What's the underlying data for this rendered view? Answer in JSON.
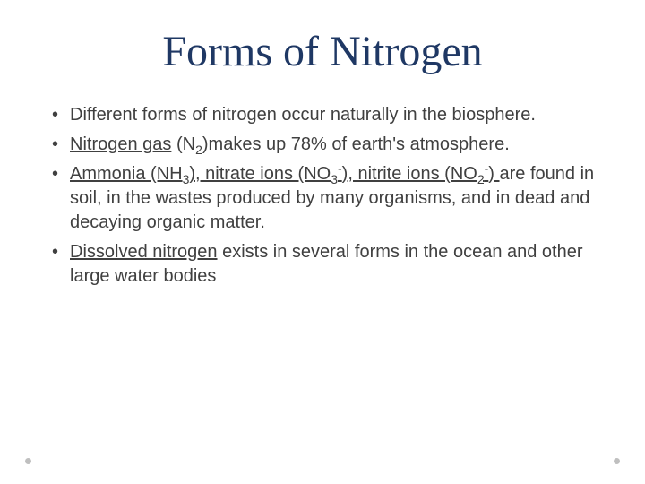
{
  "slide": {
    "title": "Forms of Nitrogen",
    "title_color": "#1f3864",
    "title_font": "Garamond",
    "title_fontsize": 48,
    "body_color": "#404040",
    "body_fontsize": 20,
    "background_color": "#ffffff",
    "bullets": [
      {
        "text_plain": "Different forms of nitrogen occur naturally in the biosphere.",
        "segments": [
          {
            "text": "Different forms of nitrogen occur naturally in the biosphere.",
            "underline": false
          }
        ]
      },
      {
        "text_plain": "Nitrogen gas (N2)makes up 78% of earth's atmosphere.",
        "segments": [
          {
            "text": "Nitrogen gas",
            "underline": true
          },
          {
            "text": " (N",
            "underline": false
          },
          {
            "text": "2",
            "sub": true
          },
          {
            "text": ")makes up 78% of earth's atmosphere.",
            "underline": false
          }
        ]
      },
      {
        "text_plain": "Ammonia (NH3), nitrate ions (NO3-), nitrite ions (NO2-) are found in soil, in the wastes produced by many organisms, and in dead and decaying organic matter.",
        "segments": [
          {
            "text": "Ammonia (NH",
            "underline": true
          },
          {
            "text": "3",
            "underline": true,
            "sub": true
          },
          {
            "text": "), nitrate ions (NO",
            "underline": true
          },
          {
            "text": "3",
            "underline": true,
            "sub": true
          },
          {
            "text": "-",
            "underline": true,
            "sup": true
          },
          {
            "text": "), nitrite ions (NO",
            "underline": true
          },
          {
            "text": "2",
            "underline": true,
            "sub": true
          },
          {
            "text": "-",
            "underline": true,
            "sup": true
          },
          {
            "text": ") ",
            "underline": true
          },
          {
            "text": "are found in soil, in the wastes produced by many organisms, and in dead and decaying organic matter.",
            "underline": false
          }
        ]
      },
      {
        "text_plain": "Dissolved nitrogen exists in several forms in the ocean and other large water bodies",
        "segments": [
          {
            "text": "Dissolved nitrogen",
            "underline": true
          },
          {
            "text": " exists in several forms in the ocean and other large water bodies",
            "underline": false
          }
        ]
      }
    ],
    "decorative_dot_color": "#bfbfbf"
  }
}
